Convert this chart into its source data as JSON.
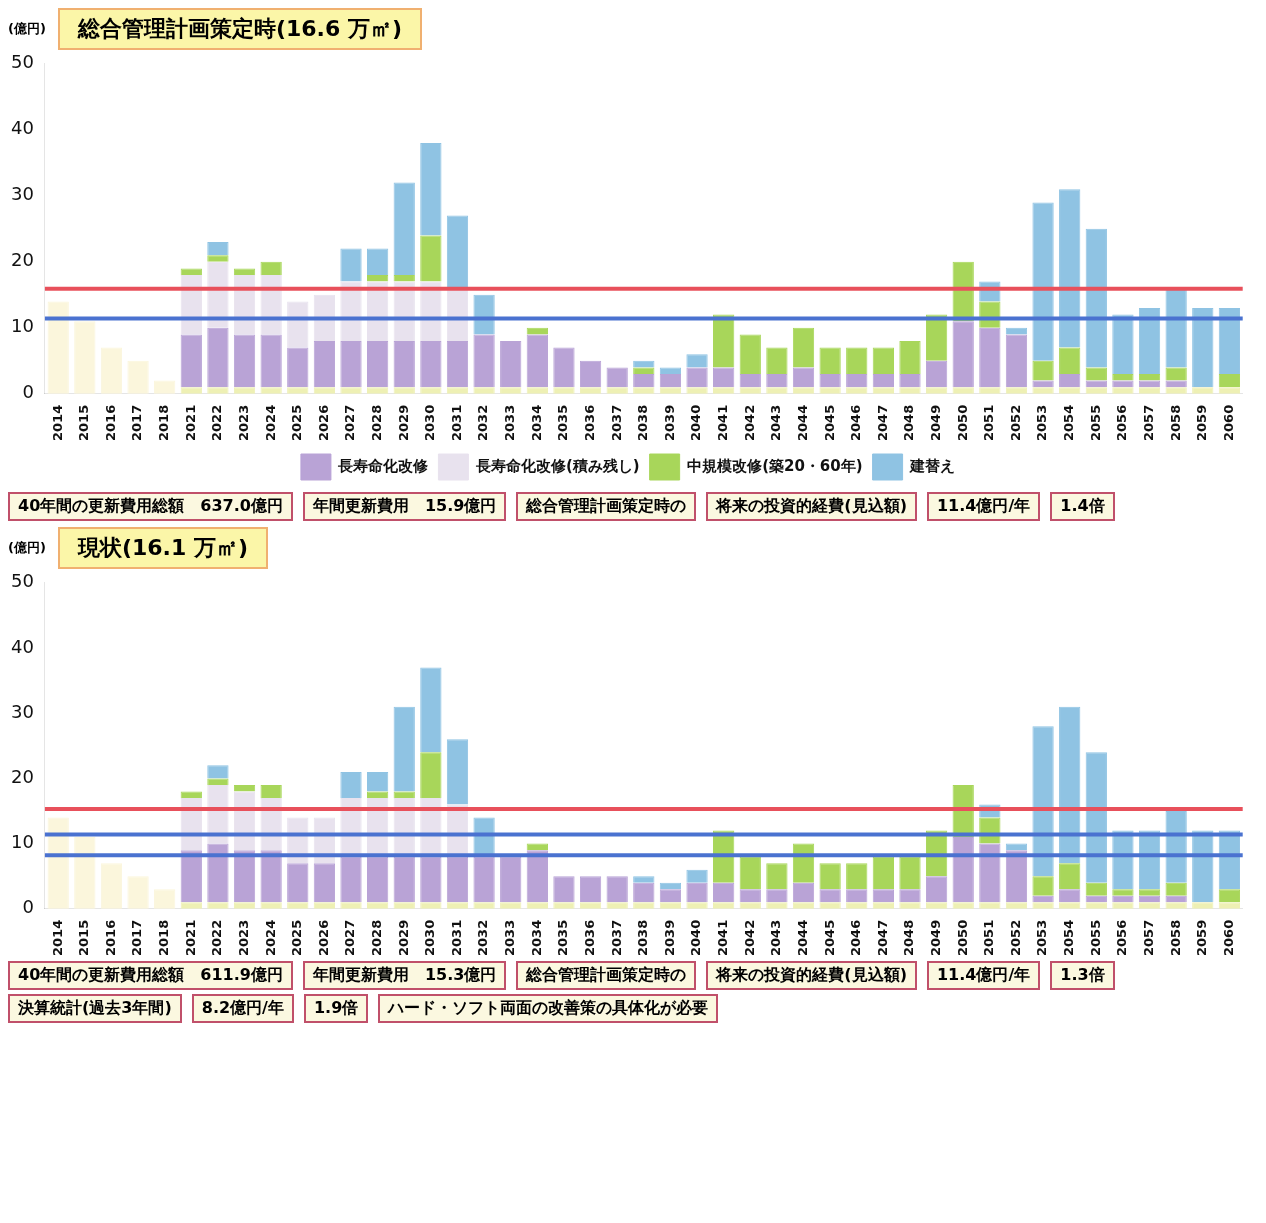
{
  "chart_data": [
    {
      "type": "bar",
      "title": "総合管理計画策定時(16.6 万㎡)",
      "ylabel": "(億円)",
      "stacked": true,
      "legend": "bottom",
      "categories": [
        "2014",
        "2015",
        "2016",
        "2017",
        "2018",
        "2021",
        "2022",
        "2023",
        "2024",
        "2025",
        "2026",
        "2027",
        "2028",
        "2029",
        "2030",
        "2031",
        "2032",
        "2033",
        "2034",
        "2035",
        "2036",
        "2037",
        "2038",
        "2039",
        "2040",
        "2041",
        "2042",
        "2043",
        "2044",
        "2045",
        "2046",
        "2047",
        "2048",
        "2049",
        "2050",
        "2051",
        "2052",
        "2053",
        "2054",
        "2055",
        "2056",
        "2057",
        "2058",
        "2059",
        "2060"
      ],
      "ylim": [
        0,
        50
      ],
      "yticks": [
        0,
        10,
        20,
        30,
        40,
        50
      ],
      "series": [
        {
          "color": "#fbf6dc",
          "values": [
            14,
            11,
            7,
            5,
            2,
            null,
            null,
            null,
            null,
            null,
            null,
            null,
            null,
            null,
            null,
            null,
            null,
            null,
            null,
            null,
            null,
            null,
            null,
            null,
            null,
            null,
            null,
            null,
            null,
            null,
            null,
            null,
            null,
            null,
            null,
            null,
            null,
            null,
            null,
            null,
            null,
            null,
            null,
            null,
            null
          ]
        },
        {
          "color": "#eef0b4",
          "values": [
            null,
            null,
            null,
            null,
            null,
            1,
            1,
            1,
            1,
            1,
            1,
            1,
            1,
            1,
            1,
            1,
            1,
            1,
            1,
            1,
            1,
            1,
            1,
            1,
            1,
            1,
            1,
            1,
            1,
            1,
            1,
            1,
            1,
            1,
            1,
            1,
            1,
            1,
            1,
            1,
            1,
            1,
            1,
            1,
            1
          ]
        },
        {
          "name": "長寿命化改修",
          "color": "#b9a3d6",
          "values": [
            null,
            null,
            null,
            null,
            null,
            8,
            9,
            8,
            8,
            6,
            7,
            7,
            7,
            7,
            7,
            7,
            8,
            7,
            8,
            6,
            4,
            3,
            2,
            2,
            3,
            3,
            2,
            2,
            3,
            2,
            2,
            2,
            2,
            4,
            10,
            9,
            8,
            1,
            2,
            1,
            1,
            1,
            1,
            null,
            null
          ]
        },
        {
          "name": "長寿命化改修(積み残し)",
          "color": "#e8e2ee",
          "values": [
            null,
            null,
            null,
            null,
            null,
            9,
            10,
            9,
            9,
            7,
            7,
            9,
            9,
            9,
            9,
            8,
            null,
            null,
            null,
            null,
            null,
            null,
            null,
            null,
            null,
            null,
            null,
            null,
            null,
            null,
            null,
            null,
            null,
            null,
            null,
            null,
            null,
            null,
            null,
            null,
            null,
            null,
            null,
            null,
            null
          ]
        },
        {
          "name": "中規模改修(築20・60年)",
          "color": "#a8d65a",
          "values": [
            null,
            null,
            null,
            null,
            null,
            1,
            1,
            1,
            2,
            null,
            null,
            null,
            1,
            1,
            7,
            null,
            null,
            null,
            1,
            null,
            null,
            null,
            1,
            null,
            null,
            8,
            6,
            4,
            6,
            4,
            4,
            4,
            5,
            7,
            9,
            4,
            null,
            3,
            4,
            2,
            1,
            1,
            2,
            null,
            2
          ]
        },
        {
          "name": "建替え",
          "color": "#8fc3e3",
          "values": [
            null,
            null,
            null,
            null,
            null,
            null,
            2,
            null,
            null,
            null,
            null,
            5,
            4,
            14,
            14,
            11,
            6,
            null,
            null,
            null,
            null,
            null,
            1,
            1,
            2,
            null,
            null,
            null,
            null,
            null,
            null,
            null,
            null,
            null,
            null,
            3,
            1,
            24,
            24,
            21,
            9,
            10,
            12,
            12,
            10
          ]
        }
      ],
      "ref_lines": [
        {
          "axis": "y",
          "value": 15.9,
          "color": "#e8505b"
        },
        {
          "axis": "y",
          "value": 11.4,
          "color": "#4a72d0"
        }
      ],
      "annotations": [
        "40年間の更新費用総額　637.0億円",
        "年間更新費用　15.9億円",
        "総合管理計画策定時の",
        "将来の投資的経費(見込額)",
        "11.4億円/年",
        "1.4倍"
      ]
    },
    {
      "type": "bar",
      "title": "現状(16.1 万㎡)",
      "ylabel": "(億円)",
      "stacked": true,
      "categories": [
        "2014",
        "2015",
        "2016",
        "2017",
        "2018",
        "2021",
        "2022",
        "2023",
        "2024",
        "2025",
        "2026",
        "2027",
        "2028",
        "2029",
        "2030",
        "2031",
        "2032",
        "2033",
        "2034",
        "2035",
        "2036",
        "2037",
        "2038",
        "2039",
        "2040",
        "2041",
        "2042",
        "2043",
        "2044",
        "2045",
        "2046",
        "2047",
        "2048",
        "2049",
        "2050",
        "2051",
        "2052",
        "2053",
        "2054",
        "2055",
        "2056",
        "2057",
        "2058",
        "2059",
        "2060"
      ],
      "ylim": [
        0,
        50
      ],
      "yticks": [
        0,
        10,
        20,
        30,
        40,
        50
      ],
      "series": [
        {
          "color": "#fbf6dc",
          "values": [
            14,
            11,
            7,
            5,
            3,
            null,
            null,
            null,
            null,
            null,
            null,
            null,
            null,
            null,
            null,
            null,
            null,
            null,
            null,
            null,
            null,
            null,
            null,
            null,
            null,
            null,
            null,
            null,
            null,
            null,
            null,
            null,
            null,
            null,
            null,
            null,
            null,
            null,
            null,
            null,
            null,
            null,
            null,
            null,
            null
          ]
        },
        {
          "color": "#eef0b4",
          "values": [
            null,
            null,
            null,
            null,
            null,
            1,
            1,
            1,
            1,
            1,
            1,
            1,
            1,
            1,
            1,
            1,
            1,
            1,
            1,
            1,
            1,
            1,
            1,
            1,
            1,
            1,
            1,
            1,
            1,
            1,
            1,
            1,
            1,
            1,
            1,
            1,
            1,
            1,
            1,
            1,
            1,
            1,
            1,
            1,
            1
          ]
        },
        {
          "color": "#b9a3d6",
          "values": [
            null,
            null,
            null,
            null,
            null,
            8,
            9,
            8,
            8,
            6,
            6,
            7,
            7,
            7,
            7,
            7,
            7,
            7,
            8,
            4,
            4,
            4,
            3,
            2,
            3,
            3,
            2,
            2,
            3,
            2,
            2,
            2,
            2,
            4,
            10,
            9,
            8,
            1,
            2,
            1,
            1,
            1,
            1,
            null,
            null
          ]
        },
        {
          "color": "#e8e2ee",
          "values": [
            null,
            null,
            null,
            null,
            null,
            8,
            9,
            9,
            8,
            7,
            7,
            9,
            9,
            9,
            9,
            8,
            null,
            null,
            null,
            null,
            null,
            null,
            null,
            null,
            null,
            null,
            null,
            null,
            null,
            null,
            null,
            null,
            null,
            null,
            null,
            null,
            null,
            null,
            null,
            null,
            null,
            null,
            null,
            null,
            null
          ]
        },
        {
          "color": "#a8d65a",
          "values": [
            null,
            null,
            null,
            null,
            null,
            1,
            1,
            1,
            2,
            null,
            null,
            null,
            1,
            1,
            7,
            null,
            null,
            null,
            1,
            null,
            null,
            null,
            null,
            null,
            null,
            8,
            5,
            4,
            6,
            4,
            4,
            5,
            5,
            7,
            8,
            4,
            null,
            3,
            4,
            2,
            1,
            1,
            2,
            null,
            2
          ]
        },
        {
          "color": "#8fc3e3",
          "values": [
            null,
            null,
            null,
            null,
            null,
            null,
            2,
            null,
            null,
            null,
            null,
            4,
            3,
            13,
            13,
            10,
            6,
            null,
            null,
            null,
            null,
            null,
            1,
            1,
            2,
            null,
            null,
            null,
            null,
            null,
            null,
            null,
            null,
            null,
            null,
            2,
            1,
            23,
            24,
            20,
            9,
            9,
            11,
            11,
            9
          ]
        }
      ],
      "ref_lines": [
        {
          "axis": "y",
          "value": 15.3,
          "color": "#e8505b"
        },
        {
          "axis": "y",
          "value": 11.4,
          "color": "#4a72d0"
        },
        {
          "axis": "y",
          "value": 8.2,
          "color": "#4a72d0"
        }
      ],
      "annotations": [
        "40年間の更新費用総額　611.9億円",
        "年間更新費用　15.3億円",
        "総合管理計画策定時の",
        "将来の投資的経費(見込額)",
        "11.4億円/年",
        "1.3倍",
        "決算統計(過去3年間)",
        "8.2億円/年",
        "1.9倍",
        "ハード・ソフト両面の改善策の具体化が必要"
      ]
    }
  ]
}
